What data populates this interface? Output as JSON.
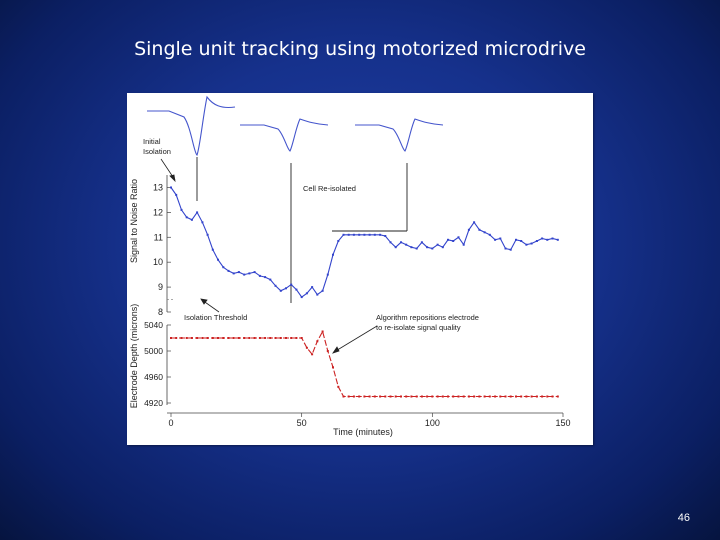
{
  "slide": {
    "title": "Single unit tracking using motorized microdrive",
    "page_number": "46"
  },
  "chart_data": {
    "type": "line",
    "x": [
      0,
      2,
      4,
      6,
      8,
      10,
      12,
      14,
      16,
      18,
      20,
      22,
      24,
      26,
      28,
      30,
      32,
      34,
      36,
      38,
      40,
      42,
      44,
      46,
      48,
      50,
      52,
      54,
      56,
      58,
      60,
      62,
      64,
      66,
      68,
      70,
      72,
      74,
      76,
      78,
      80,
      82,
      84,
      86,
      88,
      90,
      92,
      94,
      96,
      98,
      100,
      102,
      104,
      106,
      108,
      110,
      112,
      114,
      116,
      118,
      120,
      122,
      124,
      126,
      128,
      130,
      132,
      134,
      136,
      138,
      140,
      142,
      144,
      146,
      148
    ],
    "series": [
      {
        "name": "Signal to Noise Ratio",
        "color": "#3344cc",
        "values": [
          13.0,
          12.7,
          12.1,
          11.8,
          11.7,
          12.0,
          11.6,
          11.1,
          10.5,
          10.1,
          9.8,
          9.65,
          9.55,
          9.6,
          9.5,
          9.55,
          9.6,
          9.45,
          9.4,
          9.3,
          9.05,
          8.85,
          8.95,
          9.1,
          8.9,
          8.6,
          8.75,
          9.0,
          8.7,
          8.85,
          9.5,
          10.3,
          10.85,
          11.1,
          11.1,
          11.1,
          11.1,
          11.1,
          11.1,
          11.1,
          11.1,
          11.05,
          10.8,
          10.6,
          10.8,
          10.7,
          10.6,
          10.55,
          10.8,
          10.6,
          10.55,
          10.7,
          10.6,
          10.9,
          10.85,
          11.0,
          10.7,
          11.3,
          11.6,
          11.3,
          11.2,
          11.1,
          10.9,
          10.95,
          10.55,
          10.5,
          10.9,
          10.85,
          10.7,
          10.75,
          10.85,
          10.95,
          10.9,
          10.95,
          10.9
        ]
      },
      {
        "name": "Electrode Depth (microns)",
        "color": "#cc2222",
        "values": [
          5020,
          5020,
          5020,
          5020,
          5020,
          5020,
          5020,
          5020,
          5020,
          5020,
          5020,
          5020,
          5020,
          5020,
          5020,
          5020,
          5020,
          5020,
          5020,
          5020,
          5020,
          5020,
          5020,
          5020,
          5020,
          5020,
          5005,
          4995,
          5015,
          5030,
          5000,
          4975,
          4945,
          4930,
          4930,
          4930,
          4930,
          4930,
          4930,
          4930,
          4930,
          4930,
          4930,
          4930,
          4930,
          4930,
          4930,
          4930,
          4930,
          4930,
          4930,
          4930,
          4930,
          4930,
          4930,
          4930,
          4930,
          4930,
          4930,
          4930,
          4930,
          4930,
          4930,
          4930,
          4930,
          4930,
          4930,
          4930,
          4930,
          4930,
          4930,
          4930,
          4930,
          4930,
          4930
        ]
      }
    ],
    "waveforms": [
      {
        "position": "initial isolation"
      },
      {
        "position": "before reposition"
      },
      {
        "position": "after re-isolation"
      }
    ],
    "xlabel": "Time (minutes)",
    "xlim": [
      0,
      150
    ],
    "xticks": [
      "0",
      "50",
      "100",
      "150"
    ],
    "ylabel_top": "Signal to Noise Ratio",
    "ylim_top": [
      8,
      13.5
    ],
    "yticks_top": [
      "13",
      "12",
      "11",
      "10",
      "9",
      "8"
    ],
    "isolation_threshold": 8.5,
    "ylabel_bottom": "Electrode Depth (microns)",
    "ylim_bottom": [
      4920,
      5040
    ],
    "yticks_bottom": [
      "5040",
      "5000",
      "4960",
      "4920"
    ],
    "annotations": {
      "initial_line1": "Initial",
      "initial_line2": "Isolation",
      "reisolated": "Cell Re-isolated",
      "threshold": "Isolation Threshold",
      "algorithm_line1": "Algorithm repositions electrode",
      "algorithm_line2": "to re-isolate signal quality"
    }
  }
}
